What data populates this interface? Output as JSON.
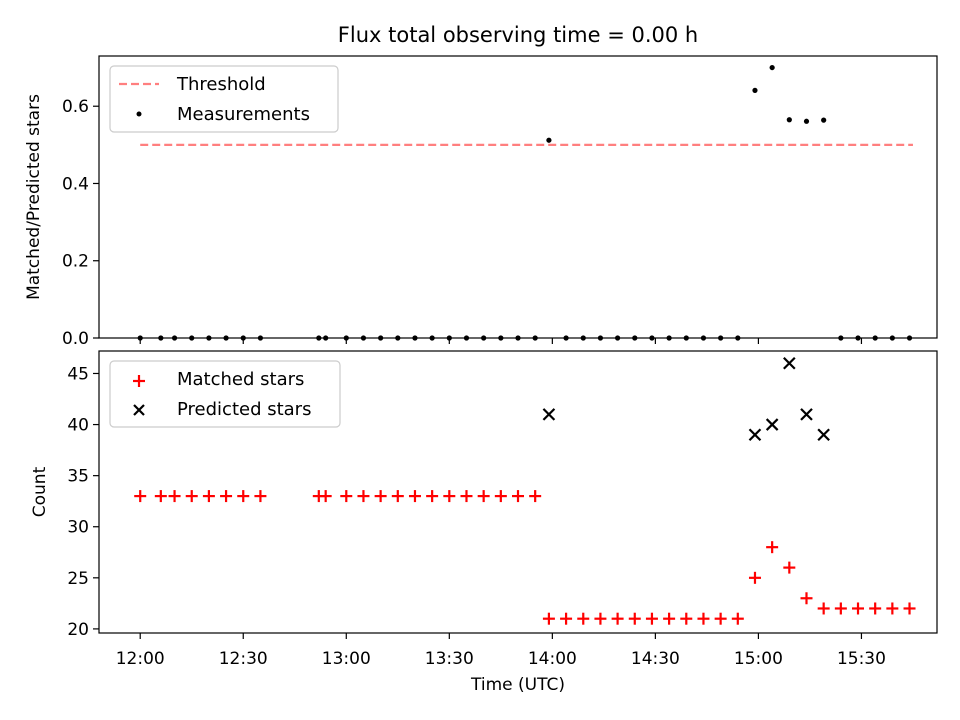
{
  "chart_data": [
    {
      "type": "scatter",
      "title": "Flux total observing time = 0.00 h",
      "xlabel": "",
      "ylabel": "Matched/Predicted stars",
      "ylim": [
        0,
        0.73
      ],
      "yticks": [
        0.0,
        0.2,
        0.4,
        0.6
      ],
      "ytick_labels": [
        "0.0",
        "0.2",
        "0.4",
        "0.6"
      ],
      "legend_position": "upper-left",
      "legend": [
        "Threshold",
        "Measurements"
      ],
      "threshold": {
        "name": "Threshold",
        "y": 0.5,
        "x_start": "12:00",
        "x_end": "15:45",
        "color": "#ff7f7f",
        "style": "dashed"
      },
      "series": [
        {
          "name": "Measurements",
          "marker": "dot",
          "color": "#000000",
          "x": [
            "12:00",
            "12:06",
            "12:10",
            "12:15",
            "12:20",
            "12:25",
            "12:30",
            "12:35",
            "12:52",
            "12:54",
            "13:00",
            "13:05",
            "13:10",
            "13:15",
            "13:20",
            "13:25",
            "13:30",
            "13:35",
            "13:40",
            "13:45",
            "13:50",
            "13:55",
            "13:59",
            "14:04",
            "14:09",
            "14:14",
            "14:19",
            "14:24",
            "14:29",
            "14:34",
            "14:39",
            "14:44",
            "14:49",
            "14:54",
            "14:59",
            "15:04",
            "15:09",
            "15:14",
            "15:19",
            "15:24",
            "15:29",
            "15:34",
            "15:39",
            "15:44"
          ],
          "y": [
            0,
            0,
            0,
            0,
            0,
            0,
            0,
            0,
            0,
            0,
            0,
            0,
            0,
            0,
            0,
            0,
            0,
            0,
            0,
            0,
            0,
            0,
            0.512,
            0,
            0,
            0,
            0,
            0,
            0,
            0,
            0,
            0,
            0,
            0,
            0.641,
            0.7,
            0.565,
            0.561,
            0.564,
            0,
            0,
            0,
            0,
            0
          ]
        }
      ]
    },
    {
      "type": "scatter",
      "title": "",
      "xlabel": "Time (UTC)",
      "ylabel": "Count",
      "ylim": [
        19.6,
        47.2
      ],
      "yticks": [
        20,
        25,
        30,
        35,
        40,
        45
      ],
      "ytick_labels": [
        "20",
        "25",
        "30",
        "35",
        "40",
        "45"
      ],
      "xlim": [
        "11:48",
        "15:52"
      ],
      "xticks": [
        "12:00",
        "12:30",
        "13:00",
        "13:30",
        "14:00",
        "14:30",
        "15:00",
        "15:30"
      ],
      "xtick_labels": [
        "12:00",
        "12:30",
        "13:00",
        "13:30",
        "14:00",
        "14:30",
        "15:00",
        "15:30"
      ],
      "legend_position": "upper-left",
      "legend": [
        "Matched stars",
        "Predicted stars"
      ],
      "series": [
        {
          "name": "Matched stars",
          "marker": "plus",
          "color": "#ff0000",
          "x": [
            "12:00",
            "12:06",
            "12:10",
            "12:15",
            "12:20",
            "12:25",
            "12:30",
            "12:35",
            "12:52",
            "12:54",
            "13:00",
            "13:05",
            "13:10",
            "13:15",
            "13:20",
            "13:25",
            "13:30",
            "13:35",
            "13:40",
            "13:45",
            "13:50",
            "13:55",
            "13:59",
            "14:04",
            "14:09",
            "14:14",
            "14:19",
            "14:24",
            "14:29",
            "14:34",
            "14:39",
            "14:44",
            "14:49",
            "14:54",
            "14:59",
            "15:04",
            "15:09",
            "15:14",
            "15:19",
            "15:24",
            "15:29",
            "15:34",
            "15:39",
            "15:44"
          ],
          "y": [
            33,
            33,
            33,
            33,
            33,
            33,
            33,
            33,
            33,
            33,
            33,
            33,
            33,
            33,
            33,
            33,
            33,
            33,
            33,
            33,
            33,
            33,
            21,
            21,
            21,
            21,
            21,
            21,
            21,
            21,
            21,
            21,
            21,
            21,
            25,
            28,
            26,
            23,
            22,
            22,
            22,
            22,
            22,
            22
          ]
        },
        {
          "name": "Predicted stars",
          "marker": "x",
          "color": "#000000",
          "x": [
            "13:59",
            "14:59",
            "15:04",
            "15:09",
            "15:14",
            "15:19"
          ],
          "y": [
            41,
            39,
            40,
            46,
            41,
            39
          ]
        }
      ]
    }
  ]
}
